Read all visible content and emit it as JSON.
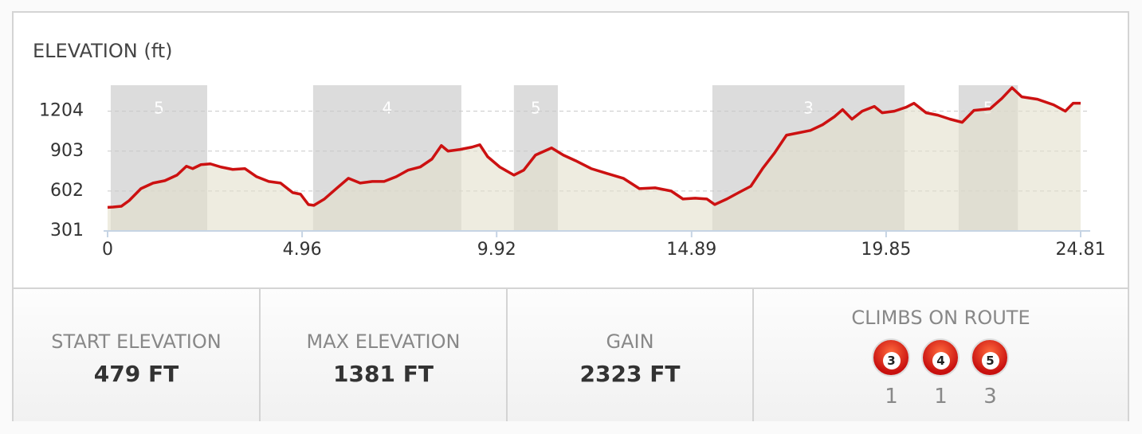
{
  "chart_data": {
    "type": "area",
    "title": "ELEVATION (ft)",
    "x": [
      0,
      0.14,
      0.35,
      0.55,
      0.85,
      1.16,
      1.46,
      1.77,
      2.01,
      2.17,
      2.38,
      2.62,
      2.89,
      3.19,
      3.5,
      3.8,
      4.11,
      4.41,
      4.72,
      4.92,
      5.12,
      5.26,
      5.53,
      5.83,
      6.14,
      6.44,
      6.75,
      7.05,
      7.36,
      7.66,
      7.97,
      8.27,
      8.51,
      8.68,
      8.98,
      9.29,
      9.49,
      9.69,
      10.0,
      10.36,
      10.61,
      10.91,
      11.32,
      11.62,
      11.93,
      12.33,
      12.74,
      13.15,
      13.56,
      13.96,
      14.37,
      14.67,
      14.98,
      15.28,
      15.48,
      15.79,
      16.09,
      16.4,
      16.7,
      17.01,
      17.31,
      17.62,
      17.92,
      18.23,
      18.53,
      18.74,
      18.98,
      19.24,
      19.55,
      19.75,
      20.06,
      20.36,
      20.56,
      20.87,
      21.17,
      21.48,
      21.79,
      22.09,
      22.5,
      22.8,
      23.06,
      23.31,
      23.71,
      24.12,
      24.42,
      24.62,
      24.81
    ],
    "values": [
      479,
      481,
      487,
      530,
      620,
      662,
      680,
      722,
      789,
      771,
      801,
      807,
      783,
      765,
      771,
      710,
      674,
      662,
      590,
      578,
      500,
      494,
      542,
      620,
      698,
      662,
      674,
      674,
      710,
      759,
      783,
      843,
      945,
      903,
      915,
      933,
      951,
      861,
      783,
      722,
      759,
      873,
      927,
      873,
      831,
      771,
      734,
      698,
      620,
      626,
      602,
      542,
      548,
      542,
      500,
      542,
      590,
      638,
      771,
      891,
      1023,
      1041,
      1059,
      1102,
      1162,
      1216,
      1144,
      1204,
      1240,
      1192,
      1204,
      1234,
      1264,
      1192,
      1174,
      1144,
      1120,
      1210,
      1222,
      1300,
      1381,
      1312,
      1294,
      1252,
      1204,
      1264,
      1264
    ],
    "color": "#cc1111",
    "fill": "#e2dfcc",
    "xlim": [
      0,
      24.81
    ],
    "xticks": [
      0,
      4.96,
      9.92,
      14.89,
      19.85,
      24.81
    ],
    "ylim": [
      301,
      1400
    ],
    "yticks": [
      301,
      602,
      903,
      1204
    ],
    "grid": true,
    "climb_bands": [
      {
        "start": 0.08,
        "end": 2.54,
        "label": "5"
      },
      {
        "start": 5.24,
        "end": 9.02,
        "label": "4"
      },
      {
        "start": 10.36,
        "end": 11.48,
        "label": "5"
      },
      {
        "start": 15.42,
        "end": 20.32,
        "label": "3"
      },
      {
        "start": 21.7,
        "end": 23.21,
        "label": "5"
      }
    ]
  },
  "stats": [
    {
      "label": "START ELEVATION",
      "value": "479 FT"
    },
    {
      "label": "MAX ELEVATION",
      "value": "1381 FT"
    },
    {
      "label": "GAIN",
      "value": "2323 FT"
    }
  ],
  "climbs_on_route": {
    "title": "CLIMBS ON ROUTE",
    "items": [
      {
        "category": "3",
        "count": "1"
      },
      {
        "category": "4",
        "count": "1"
      },
      {
        "category": "5",
        "count": "3"
      }
    ]
  }
}
